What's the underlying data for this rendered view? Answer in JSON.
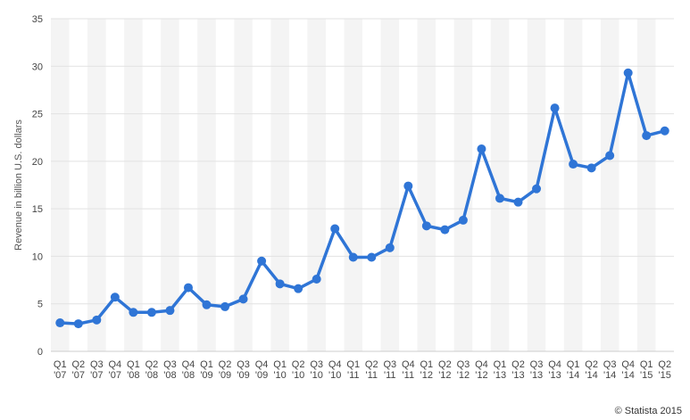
{
  "chart_data": {
    "type": "line",
    "title": "",
    "xlabel": "",
    "ylabel": "Revenue in billion U.S. dollars",
    "ylim": [
      0,
      35
    ],
    "yticks": [
      0,
      5,
      10,
      15,
      20,
      25,
      30,
      35
    ],
    "grid": true,
    "categories": [
      [
        "Q1",
        "'07"
      ],
      [
        "Q2",
        "'07"
      ],
      [
        "Q3",
        "'07"
      ],
      [
        "Q4",
        "'07"
      ],
      [
        "Q1",
        "'08"
      ],
      [
        "Q2",
        "'08"
      ],
      [
        "Q3",
        "'08"
      ],
      [
        "Q4",
        "'08"
      ],
      [
        "Q1",
        "'09"
      ],
      [
        "Q2",
        "'09"
      ],
      [
        "Q3",
        "'09"
      ],
      [
        "Q4",
        "'09"
      ],
      [
        "Q1",
        "'10"
      ],
      [
        "Q2",
        "'10"
      ],
      [
        "Q3",
        "'10"
      ],
      [
        "Q4",
        "'10"
      ],
      [
        "Q1",
        "'11"
      ],
      [
        "Q2",
        "'11"
      ],
      [
        "Q3",
        "'11"
      ],
      [
        "Q4",
        "'11"
      ],
      [
        "Q1",
        "'12"
      ],
      [
        "Q2",
        "'12"
      ],
      [
        "Q3",
        "'12"
      ],
      [
        "Q4",
        "'12"
      ],
      [
        "Q1",
        "'13"
      ],
      [
        "Q2",
        "'13"
      ],
      [
        "Q3",
        "'13"
      ],
      [
        "Q4",
        "'13"
      ],
      [
        "Q1",
        "'14"
      ],
      [
        "Q2",
        "'14"
      ],
      [
        "Q3",
        "'14"
      ],
      [
        "Q4",
        "'14"
      ],
      [
        "Q1",
        "'15"
      ],
      [
        "Q2",
        "'15"
      ]
    ],
    "series": [
      {
        "values": [
          3.0,
          2.9,
          3.3,
          5.7,
          4.1,
          4.1,
          4.3,
          6.7,
          4.9,
          4.7,
          5.5,
          9.5,
          7.1,
          6.6,
          7.6,
          12.9,
          9.9,
          9.9,
          10.9,
          17.4,
          13.2,
          12.8,
          13.8,
          21.3,
          16.1,
          15.7,
          17.1,
          25.6,
          19.7,
          19.3,
          20.6,
          29.3,
          22.7,
          23.2
        ],
        "color": "#2f75d6"
      }
    ]
  },
  "credit": "© Statista 2015"
}
